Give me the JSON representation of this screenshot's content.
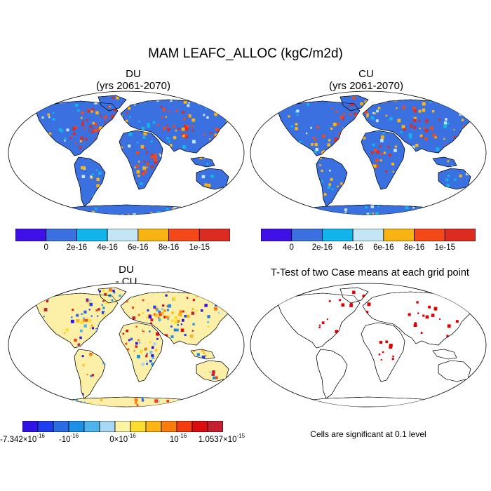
{
  "title": "MAM LEAFC_ALLOC (kgC/m2d)",
  "panels": {
    "du": {
      "title_line1": "DU",
      "title_line2": "(yrs 2061-2070)"
    },
    "cu": {
      "title_line1": "CU",
      "title_line2": "(yrs 2061-2070)"
    },
    "diff": {
      "title_line1": "DU",
      "title_line2": "- CU"
    },
    "ttest": {
      "title": "T-Test of two Case means at each grid point",
      "note": "Cells are significant at 0.1 level"
    }
  },
  "colorbar_main": {
    "colors": [
      "#4010e8",
      "#3a70e0",
      "#12b4ec",
      "#c4e6f4",
      "#f8b412",
      "#f44818",
      "#dc2c22"
    ],
    "labels": [
      "0",
      "2e-16",
      "4e-16",
      "6e-16",
      "8e-16",
      "1e-15"
    ]
  },
  "colorbar_diff": {
    "colors": [
      "#3014e6",
      "#1e3ef0",
      "#2a6ce4",
      "#1c90e4",
      "#50b4ec",
      "#a8d8f4",
      "#fcf4a4",
      "#fcdc2c",
      "#fcb414",
      "#fc7c0c",
      "#f43c10",
      "#dc0c10",
      "#c42030"
    ],
    "labels": {
      "min_base": "-7.342×10",
      "min_exp": "-16",
      "l2_base": "-10",
      "l2_exp": "-16",
      "mid_base": "0×10",
      "mid_exp": "-16",
      "l4_base": "10",
      "l4_exp": "-16",
      "max_base": "1.0537×10",
      "max_exp": "-15"
    }
  },
  "map_colors": {
    "ocean": "#ffffff",
    "land_main": "#3a70e0",
    "land_diff": "#fcf0a8",
    "signif": "#e00000",
    "coast": "#000000"
  }
}
